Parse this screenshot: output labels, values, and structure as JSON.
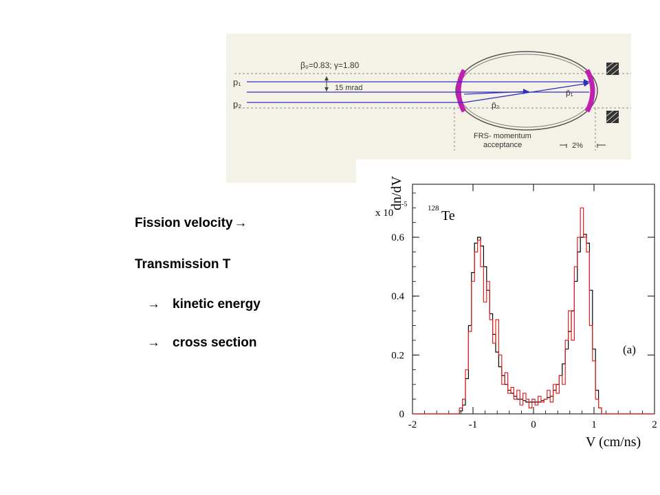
{
  "bullets": {
    "line1": "Fission velocity",
    "line2": "Transmission  T",
    "line3": "kinetic energy",
    "line4": "cross section",
    "arrow_icon": "right-arrow-icon"
  },
  "diagram": {
    "beta_gamma": "β₀=0.83;   γ=1.80",
    "p1": "p₁",
    "p2": "p₂",
    "mrad": "15  mrad",
    "p1_bar": "p̄₁",
    "p2_bar": "p̄₂",
    "frs_label": "FRS-  momentum",
    "frs_label2": "acceptance",
    "pct": "2%"
  },
  "chart_data": {
    "type": "line",
    "title": "",
    "annotation": "128Te",
    "annotation_sup": "128",
    "annotation_text": "Te",
    "panel_label": "(a)",
    "ylabel": "dn/dV",
    "y_multiplier": "x 10",
    "y_multiplier_exp": "-5",
    "xlabel": "V (cm/ns)",
    "xlim": [
      -2,
      2
    ],
    "ylim": [
      0,
      0.78
    ],
    "x_ticks": [
      "-2",
      "-1",
      "0",
      "1",
      "2"
    ],
    "y_ticks": [
      "0",
      "0.2",
      "0.4",
      "0.6"
    ],
    "series": [
      {
        "color": "#000000",
        "x": [
          -1.35,
          -1.25,
          -1.2,
          -1.15,
          -1.1,
          -1.05,
          -1.0,
          -0.95,
          -0.9,
          -0.85,
          -0.8,
          -0.75,
          -0.7,
          -0.65,
          -0.6,
          -0.55,
          -0.5,
          -0.45,
          -0.4,
          -0.35,
          -0.3,
          -0.25,
          -0.2,
          -0.15,
          -0.1,
          -0.05,
          0.0,
          0.05,
          0.1,
          0.15,
          0.2,
          0.25,
          0.3,
          0.35,
          0.4,
          0.45,
          0.5,
          0.55,
          0.6,
          0.65,
          0.7,
          0.75,
          0.8,
          0.85,
          0.9,
          0.95,
          1.0,
          1.05,
          1.1,
          1.15,
          1.2,
          1.25,
          1.35
        ],
        "values": [
          0.0,
          0.0,
          0.01,
          0.03,
          0.12,
          0.3,
          0.48,
          0.58,
          0.6,
          0.57,
          0.5,
          0.42,
          0.34,
          0.27,
          0.21,
          0.16,
          0.13,
          0.1,
          0.08,
          0.07,
          0.06,
          0.05,
          0.05,
          0.045,
          0.04,
          0.04,
          0.04,
          0.04,
          0.04,
          0.045,
          0.05,
          0.055,
          0.06,
          0.08,
          0.1,
          0.13,
          0.17,
          0.22,
          0.28,
          0.35,
          0.45,
          0.55,
          0.6,
          0.61,
          0.58,
          0.42,
          0.22,
          0.08,
          0.02,
          0.0,
          0.0,
          0.0,
          0.0
        ]
      },
      {
        "color": "#e02020",
        "x": [
          -1.35,
          -1.25,
          -1.2,
          -1.15,
          -1.1,
          -1.05,
          -1.0,
          -0.95,
          -0.9,
          -0.85,
          -0.8,
          -0.75,
          -0.7,
          -0.65,
          -0.6,
          -0.55,
          -0.5,
          -0.45,
          -0.4,
          -0.35,
          -0.3,
          -0.25,
          -0.2,
          -0.15,
          -0.1,
          -0.05,
          0.0,
          0.05,
          0.1,
          0.15,
          0.2,
          0.25,
          0.3,
          0.35,
          0.4,
          0.45,
          0.5,
          0.55,
          0.6,
          0.65,
          0.7,
          0.75,
          0.8,
          0.85,
          0.9,
          0.95,
          1.0,
          1.05,
          1.1,
          1.15,
          1.2,
          1.25,
          1.35
        ],
        "values": [
          0.0,
          0.0,
          0.02,
          0.05,
          0.15,
          0.28,
          0.45,
          0.55,
          0.59,
          0.5,
          0.38,
          0.45,
          0.32,
          0.24,
          0.32,
          0.2,
          0.1,
          0.14,
          0.07,
          0.09,
          0.05,
          0.08,
          0.03,
          0.07,
          0.05,
          0.02,
          0.05,
          0.03,
          0.06,
          0.04,
          0.05,
          0.08,
          0.04,
          0.1,
          0.07,
          0.13,
          0.1,
          0.25,
          0.35,
          0.25,
          0.5,
          0.6,
          0.7,
          0.6,
          0.55,
          0.3,
          0.18,
          0.05,
          0.02,
          0.0,
          0.0,
          0.0,
          0.0
        ]
      }
    ]
  }
}
